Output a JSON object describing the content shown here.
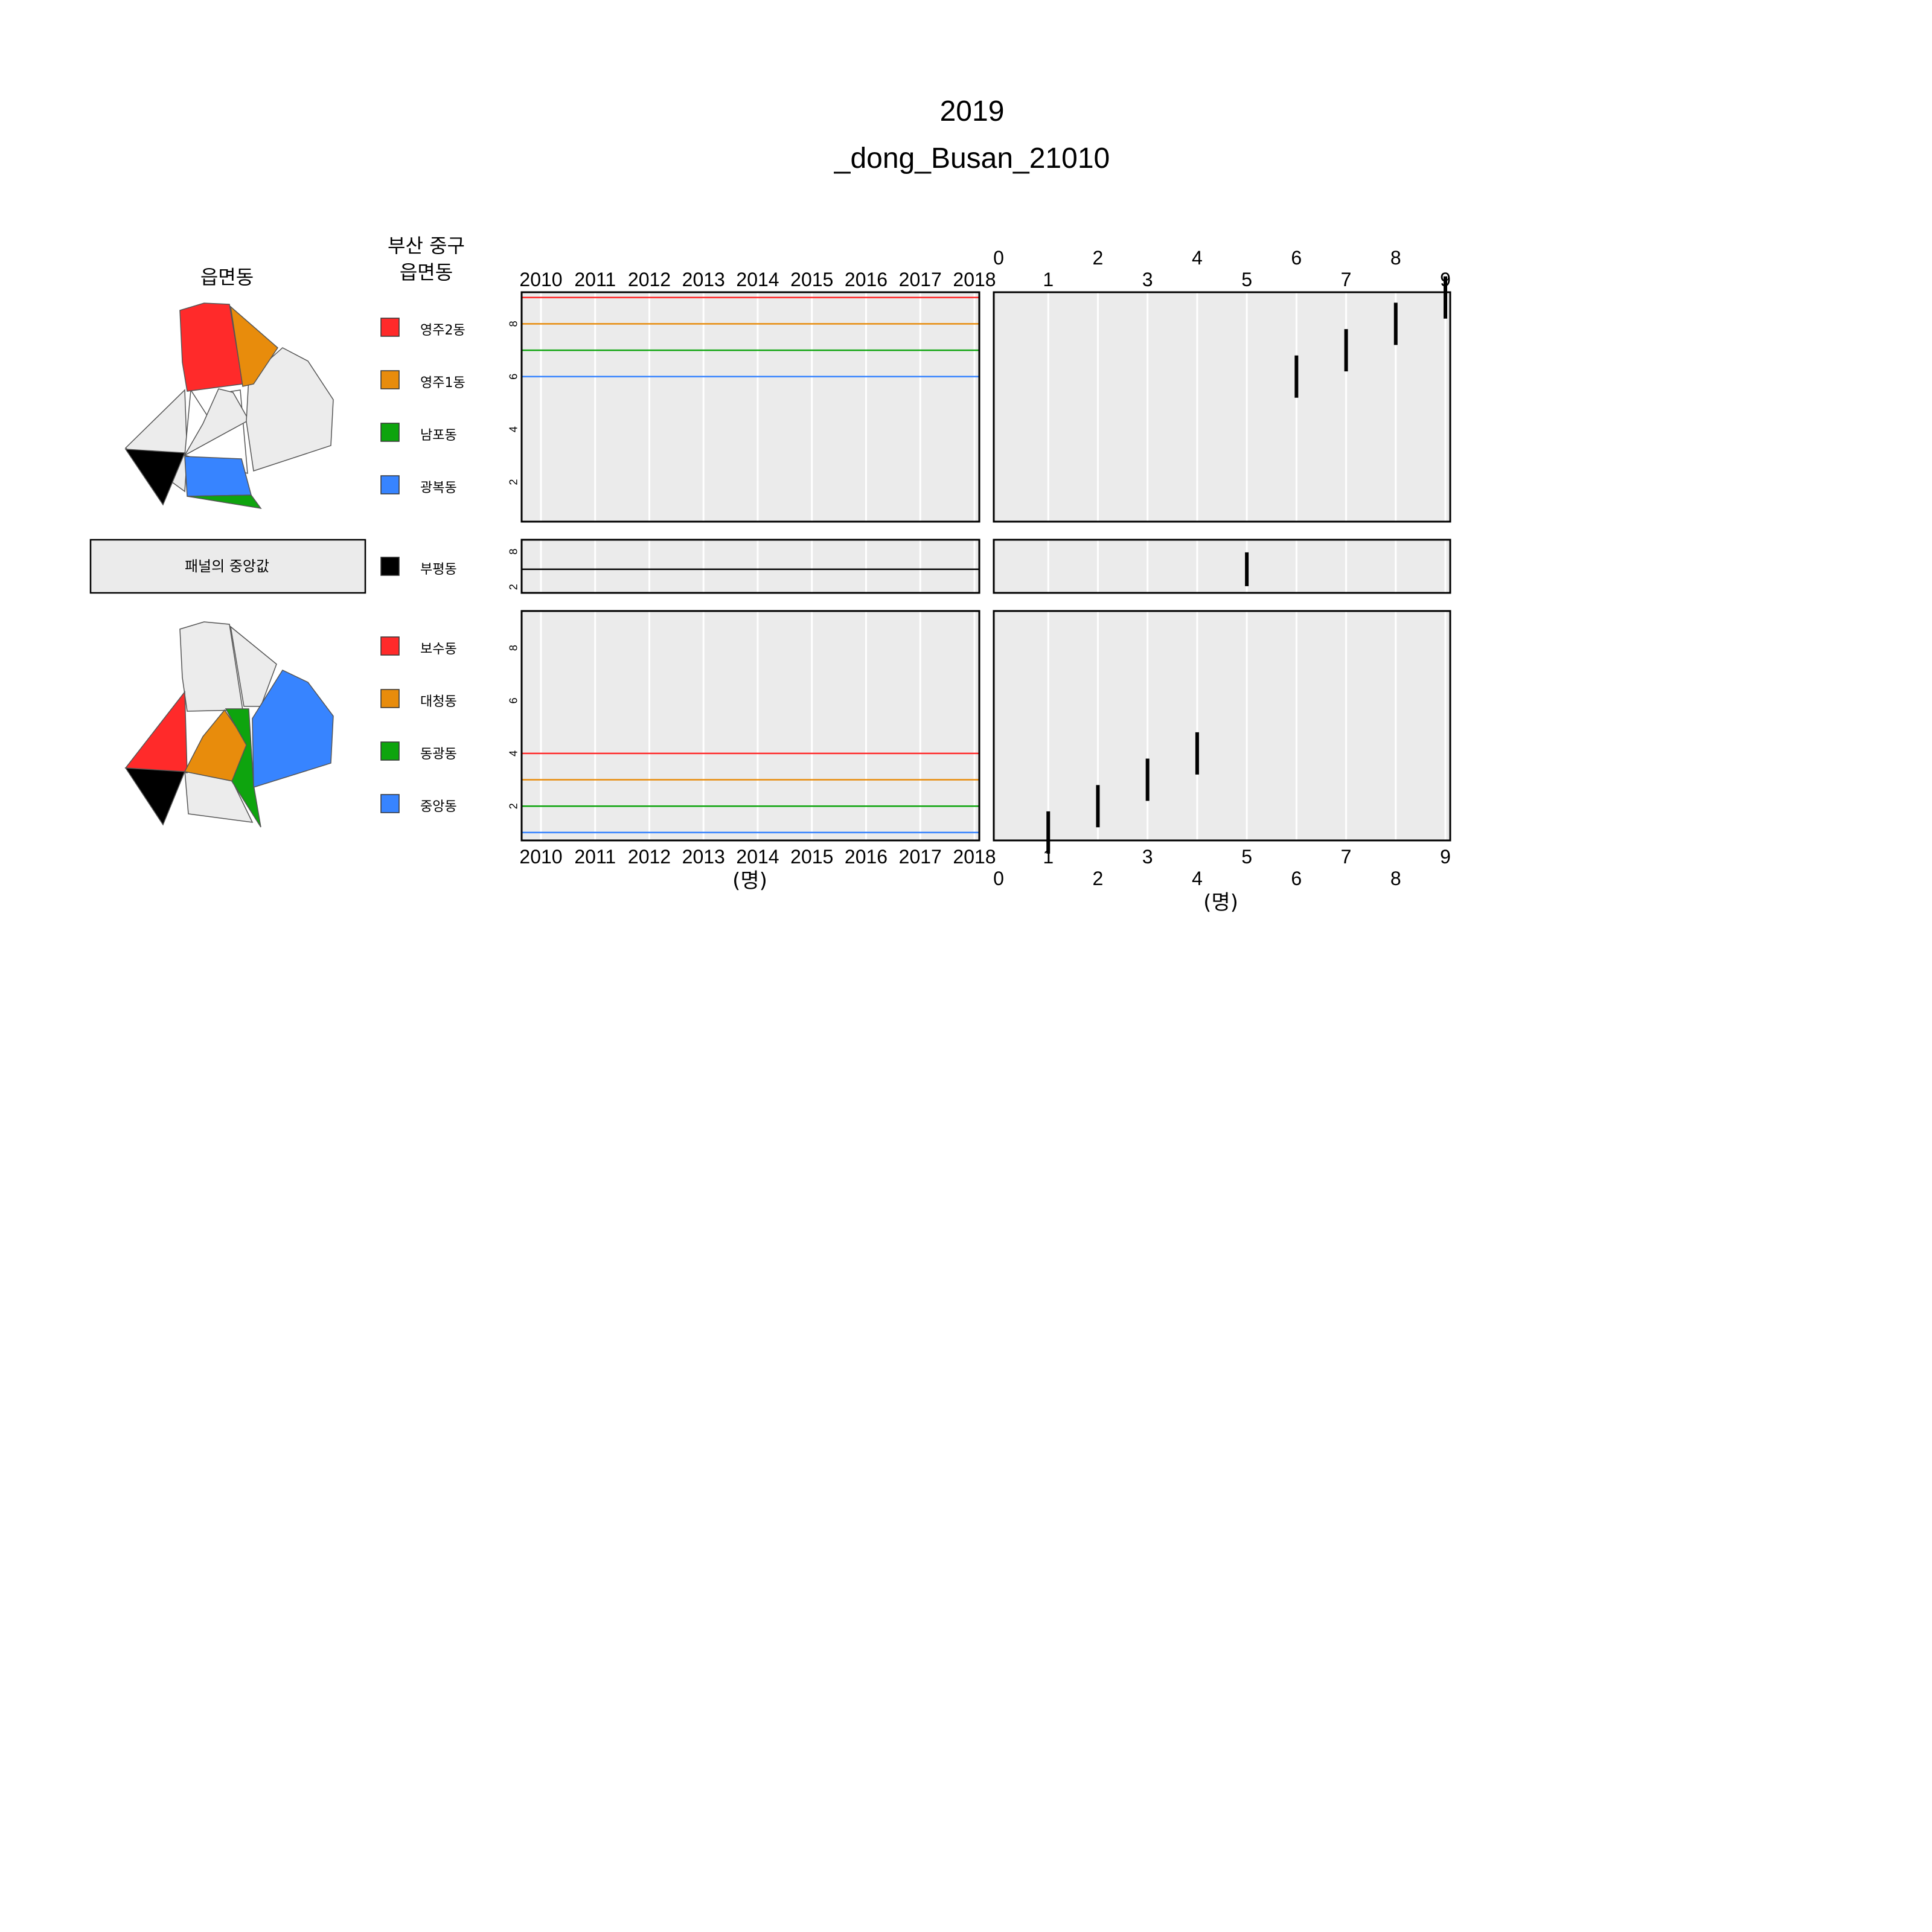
{
  "title": "2019",
  "subtitle": "_dong_Busan_21010",
  "map_header": "읍면동",
  "legend_header_line1": "부산 중구",
  "legend_header_line2": "읍면동",
  "median_panel_label": "패널의 중앙값",
  "x_unit_label": "(명)",
  "colors": {
    "red": "#ff2a2a",
    "orange": "#e88c0c",
    "green": "#0ea40e",
    "blue": "#3784ff",
    "black": "#000000",
    "panel_bg": "#ebebeb",
    "map_fill": "#ececec"
  },
  "chart_data": [
    {
      "type": "line",
      "title": "2019 _dong_Busan_21010",
      "x_axis_ticks": [
        "2010",
        "2011",
        "2012",
        "2013",
        "2014",
        "2015",
        "2016",
        "2017",
        "2018"
      ],
      "xlabel": "(명)",
      "xlim": [
        2010,
        2018
      ],
      "panels": [
        {
          "name": "top",
          "ylim": [
            0.5,
            9.2
          ],
          "yticks": [
            "2",
            "4",
            "6",
            "8"
          ],
          "series": [
            {
              "name": "영주2동",
              "color": "#ff2a2a",
              "value": 9
            },
            {
              "name": "영주1동",
              "color": "#e88c0c",
              "value": 8
            },
            {
              "name": "남포동",
              "color": "#0ea40e",
              "value": 7
            },
            {
              "name": "광복동",
              "color": "#3784ff",
              "value": 6
            }
          ]
        },
        {
          "name": "median",
          "ylim": [
            1,
            10
          ],
          "yticks": [
            "2",
            "8"
          ],
          "series": [
            {
              "name": "부평동",
              "color": "#000000",
              "value": 5
            }
          ]
        },
        {
          "name": "bottom",
          "ylim": [
            0.7,
            9.4
          ],
          "yticks": [
            "2",
            "4",
            "6",
            "8"
          ],
          "series": [
            {
              "name": "보수동",
              "color": "#ff2a2a",
              "value": 4
            },
            {
              "name": "대청동",
              "color": "#e88c0c",
              "value": 3
            },
            {
              "name": "동광동",
              "color": "#0ea40e",
              "value": 2
            },
            {
              "name": "중앙동",
              "color": "#3784ff",
              "value": 1
            }
          ]
        }
      ]
    },
    {
      "type": "scatter",
      "title": "2019 _dong_Busan_21010",
      "x_axis_ticks_odd": [
        "1",
        "3",
        "5",
        "7",
        "9"
      ],
      "x_axis_ticks_even": [
        "0",
        "2",
        "4",
        "6",
        "8"
      ],
      "xlabel": "(명)",
      "xlim": [
        0,
        9
      ],
      "marker": "vertical-bar",
      "panels": [
        {
          "name": "top",
          "points": [
            {
              "name": "영주2동",
              "x": 9
            },
            {
              "name": "영주1동",
              "x": 8
            },
            {
              "name": "남포동",
              "x": 7
            },
            {
              "name": "광복동",
              "x": 6
            }
          ]
        },
        {
          "name": "median",
          "points": [
            {
              "name": "부평동",
              "x": 5
            }
          ]
        },
        {
          "name": "bottom",
          "points": [
            {
              "name": "보수동",
              "x": 4
            },
            {
              "name": "대청동",
              "x": 3
            },
            {
              "name": "동광동",
              "x": 2
            },
            {
              "name": "중앙동",
              "x": 1
            }
          ]
        }
      ]
    }
  ]
}
